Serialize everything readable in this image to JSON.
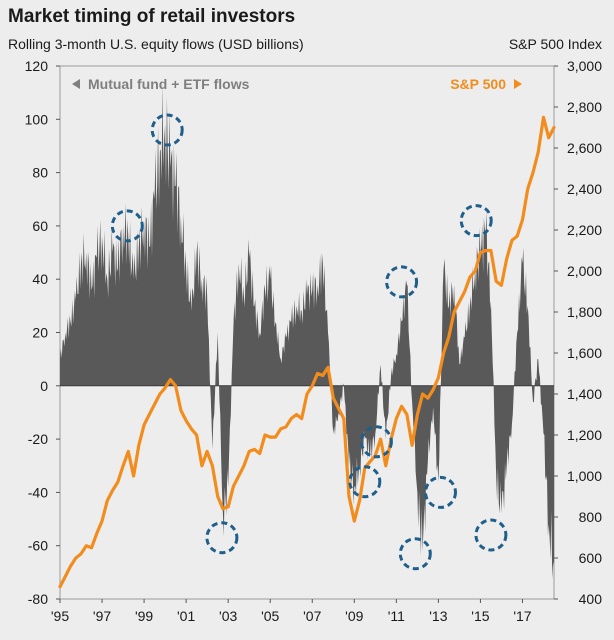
{
  "header": {
    "title": "Market timing of retail investors",
    "subtitle": "Rolling 3-month U.S. equity flows (USD billions)",
    "right_axis_title": "S&P 500 Index"
  },
  "legend": {
    "flows": "Mutual fund + ETF flows",
    "sp500": "S&P 500"
  },
  "colors": {
    "flows": "#595959",
    "sp500": "#f28c1c",
    "circles": "#1f5f8b",
    "background": "#ededed"
  },
  "chart_data": {
    "type": "area",
    "title": "Market timing of retail investors",
    "subtitle": "Rolling 3-month U.S. equity flows (USD billions)",
    "x_range": [
      1995,
      2018.5
    ],
    "x_ticks": [
      "'95",
      "'97",
      "'99",
      "'01",
      "'03",
      "'05",
      "'07",
      "'09",
      "'11",
      "'13",
      "'15",
      "'17"
    ],
    "left_axis": {
      "range": [
        -80,
        120
      ],
      "ticks": [
        "120",
        "100",
        "80",
        "60",
        "40",
        "20",
        "0",
        "-20",
        "-40",
        "-60",
        "-80"
      ]
    },
    "right_axis": {
      "label": "S&P 500 Index",
      "range": [
        400,
        3000
      ],
      "ticks": [
        "3,000",
        "2,800",
        "2,600",
        "2,400",
        "2,200",
        "2,000",
        "1,800",
        "1,600",
        "1,400",
        "1,200",
        "1,000",
        "800",
        "600",
        "400"
      ]
    },
    "series": [
      {
        "name": "Mutual fund + ETF flows",
        "axis": "left",
        "x": [
          1995.0,
          1995.25,
          1995.5,
          1995.75,
          1996.0,
          1996.25,
          1996.5,
          1996.75,
          1997.0,
          1997.25,
          1997.5,
          1997.75,
          1998.0,
          1998.25,
          1998.5,
          1998.75,
          1999.0,
          1999.25,
          1999.5,
          1999.75,
          2000.0,
          2000.25,
          2000.5,
          2000.75,
          2001.0,
          2001.25,
          2001.5,
          2001.75,
          2002.0,
          2002.25,
          2002.5,
          2002.75,
          2003.0,
          2003.25,
          2003.5,
          2003.75,
          2004.0,
          2004.25,
          2004.5,
          2004.75,
          2005.0,
          2005.25,
          2005.5,
          2005.75,
          2006.0,
          2006.25,
          2006.5,
          2006.75,
          2007.0,
          2007.25,
          2007.5,
          2007.75,
          2008.0,
          2008.25,
          2008.5,
          2008.75,
          2009.0,
          2009.25,
          2009.5,
          2009.75,
          2010.0,
          2010.25,
          2010.5,
          2010.75,
          2011.0,
          2011.25,
          2011.5,
          2011.75,
          2012.0,
          2012.25,
          2012.5,
          2012.75,
          2013.0,
          2013.25,
          2013.5,
          2013.75,
          2014.0,
          2014.25,
          2014.5,
          2014.75,
          2015.0,
          2015.25,
          2015.5,
          2015.75,
          2016.0,
          2016.25,
          2016.5,
          2016.75,
          2017.0,
          2017.25,
          2017.5,
          2017.75,
          2018.0,
          2018.25,
          2018.5
        ],
        "values": [
          10,
          20,
          24,
          32,
          46,
          50,
          36,
          48,
          56,
          40,
          50,
          44,
          60,
          56,
          40,
          52,
          62,
          52,
          70,
          88,
          98,
          82,
          75,
          64,
          44,
          28,
          50,
          40,
          34,
          -24,
          20,
          -48,
          -38,
          22,
          46,
          34,
          48,
          30,
          20,
          36,
          40,
          24,
          10,
          18,
          24,
          30,
          28,
          34,
          36,
          38,
          46,
          20,
          -18,
          -10,
          0,
          -30,
          -38,
          -30,
          -20,
          -26,
          -18,
          8,
          -20,
          4,
          12,
          24,
          38,
          -6,
          -40,
          -62,
          -28,
          -8,
          -36,
          44,
          30,
          38,
          8,
          18,
          30,
          44,
          50,
          58,
          32,
          -34,
          -48,
          -30,
          -14,
          20,
          46,
          30,
          -6,
          10,
          -18,
          -52,
          -68
        ]
      },
      {
        "name": "S&P 500",
        "axis": "right",
        "x": [
          1995.0,
          1995.25,
          1995.5,
          1995.75,
          1996.0,
          1996.25,
          1996.5,
          1996.75,
          1997.0,
          1997.25,
          1997.5,
          1997.75,
          1998.0,
          1998.25,
          1998.5,
          1998.75,
          1999.0,
          1999.25,
          1999.5,
          1999.75,
          2000.0,
          2000.25,
          2000.5,
          2000.75,
          2001.0,
          2001.25,
          2001.5,
          2001.75,
          2002.0,
          2002.25,
          2002.5,
          2002.75,
          2003.0,
          2003.25,
          2003.5,
          2003.75,
          2004.0,
          2004.25,
          2004.5,
          2004.75,
          2005.0,
          2005.25,
          2005.5,
          2005.75,
          2006.0,
          2006.25,
          2006.5,
          2006.75,
          2007.0,
          2007.25,
          2007.5,
          2007.75,
          2008.0,
          2008.25,
          2008.5,
          2008.75,
          2009.0,
          2009.25,
          2009.5,
          2009.75,
          2010.0,
          2010.25,
          2010.5,
          2010.75,
          2011.0,
          2011.25,
          2011.5,
          2011.75,
          2012.0,
          2012.25,
          2012.5,
          2012.75,
          2013.0,
          2013.25,
          2013.5,
          2013.75,
          2014.0,
          2014.25,
          2014.5,
          2014.75,
          2015.0,
          2015.25,
          2015.5,
          2015.75,
          2016.0,
          2016.25,
          2016.5,
          2016.75,
          2017.0,
          2017.25,
          2017.5,
          2017.75,
          2018.0,
          2018.25,
          2018.5
        ],
        "values": [
          460,
          510,
          560,
          600,
          620,
          660,
          650,
          720,
          780,
          880,
          930,
          970,
          1050,
          1120,
          1000,
          1150,
          1250,
          1300,
          1350,
          1400,
          1430,
          1470,
          1440,
          1320,
          1270,
          1230,
          1200,
          1050,
          1120,
          1050,
          900,
          840,
          850,
          950,
          1000,
          1050,
          1120,
          1130,
          1110,
          1200,
          1190,
          1190,
          1230,
          1240,
          1280,
          1300,
          1280,
          1400,
          1440,
          1500,
          1490,
          1530,
          1380,
          1330,
          1280,
          900,
          780,
          880,
          1040,
          1070,
          1100,
          1180,
          1050,
          1180,
          1280,
          1340,
          1300,
          1150,
          1300,
          1400,
          1380,
          1420,
          1480,
          1600,
          1680,
          1800,
          1850,
          1900,
          1970,
          2000,
          2090,
          2100,
          2100,
          1950,
          1930,
          2060,
          2150,
          2170,
          2250,
          2400,
          2480,
          2580,
          2750,
          2650,
          2700
        ]
      }
    ],
    "annotations": "dashed circles marking flow extremes",
    "annotation_points": [
      {
        "x": 1998.2,
        "y": 60
      },
      {
        "x": 2000.1,
        "y": 96
      },
      {
        "x": 2002.7,
        "y": -57
      },
      {
        "x": 2009.5,
        "y": -36
      },
      {
        "x": 2010.05,
        "y": -21
      },
      {
        "x": 2011.25,
        "y": 39
      },
      {
        "x": 2011.9,
        "y": -63
      },
      {
        "x": 2013.1,
        "y": -40
      },
      {
        "x": 2014.8,
        "y": 62
      },
      {
        "x": 2015.5,
        "y": -56
      }
    ]
  }
}
